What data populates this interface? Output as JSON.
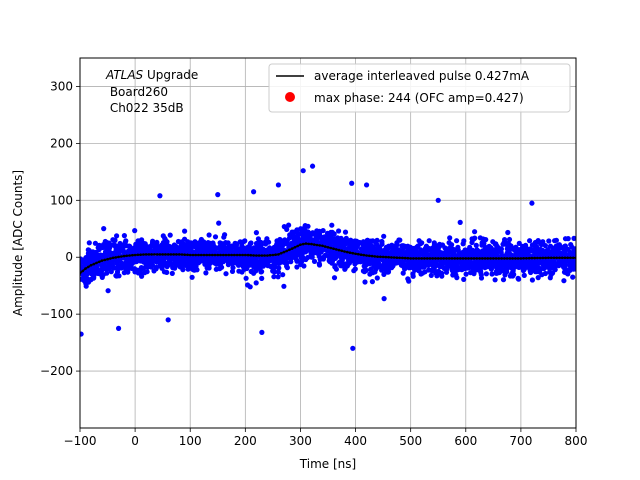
{
  "chart_data": {
    "type": "scatter",
    "xlabel": "Time [ns]",
    "ylabel": "Amplitude [ADC Counts]",
    "xlim": [
      -100,
      800
    ],
    "ylim": [
      -300,
      350
    ],
    "xticks": [
      -100,
      0,
      100,
      200,
      300,
      400,
      500,
      600,
      700,
      800
    ],
    "yticks": [
      -200,
      -100,
      0,
      100,
      200,
      300
    ],
    "xtick_labels": [
      "−100",
      "0",
      "100",
      "200",
      "300",
      "400",
      "500",
      "600",
      "700",
      "800"
    ],
    "ytick_labels": [
      "−200",
      "−100",
      "0",
      "100",
      "200",
      "300"
    ],
    "grid": true,
    "legend_position": "top-right",
    "annotation": {
      "line1_italic": "ATLAS",
      "line1_rest": " Upgrade",
      "line2": " Board260",
      "line3": " Ch022 35dB"
    },
    "series": [
      {
        "name": "average interleaved pulse 0.427mA",
        "kind": "line",
        "color": "#000000",
        "x": [
          -100,
          -90,
          -80,
          -60,
          -40,
          -20,
          0,
          20,
          40,
          60,
          80,
          100,
          120,
          140,
          160,
          180,
          200,
          220,
          240,
          260,
          280,
          300,
          310,
          320,
          340,
          360,
          380,
          400,
          420,
          440,
          460,
          480,
          500,
          550,
          600,
          650,
          700,
          750,
          800
        ],
        "y": [
          -28,
          -20,
          -14,
          -6,
          -1,
          2,
          4,
          5,
          5,
          5,
          5,
          4,
          4,
          4,
          4,
          4,
          4,
          3,
          3,
          5,
          13,
          22,
          24,
          23,
          20,
          15,
          10,
          6,
          3,
          1,
          0,
          -1,
          -2,
          -2,
          -2,
          -2,
          -2,
          -1,
          -1
        ]
      },
      {
        "name": "max phase: 244 (OFC amp=0.427)",
        "kind": "marker",
        "color": "#ff0000",
        "x": [],
        "y": []
      }
    ],
    "samples": {
      "color": "#0000ff",
      "description_note": "dense blue sample points scattered around the average pulse",
      "outliers": [
        {
          "x": -98,
          "y": -135
        },
        {
          "x": -30,
          "y": -125
        },
        {
          "x": 60,
          "y": -110
        },
        {
          "x": 230,
          "y": -132
        },
        {
          "x": 305,
          "y": 152
        },
        {
          "x": 322,
          "y": 160
        },
        {
          "x": 260,
          "y": 127
        },
        {
          "x": 395,
          "y": -160
        },
        {
          "x": 393,
          "y": 130
        },
        {
          "x": 420,
          "y": 127
        },
        {
          "x": 45,
          "y": 108
        },
        {
          "x": 150,
          "y": 110
        },
        {
          "x": 215,
          "y": 115
        },
        {
          "x": 550,
          "y": 100
        },
        {
          "x": 720,
          "y": 95
        }
      ]
    }
  }
}
